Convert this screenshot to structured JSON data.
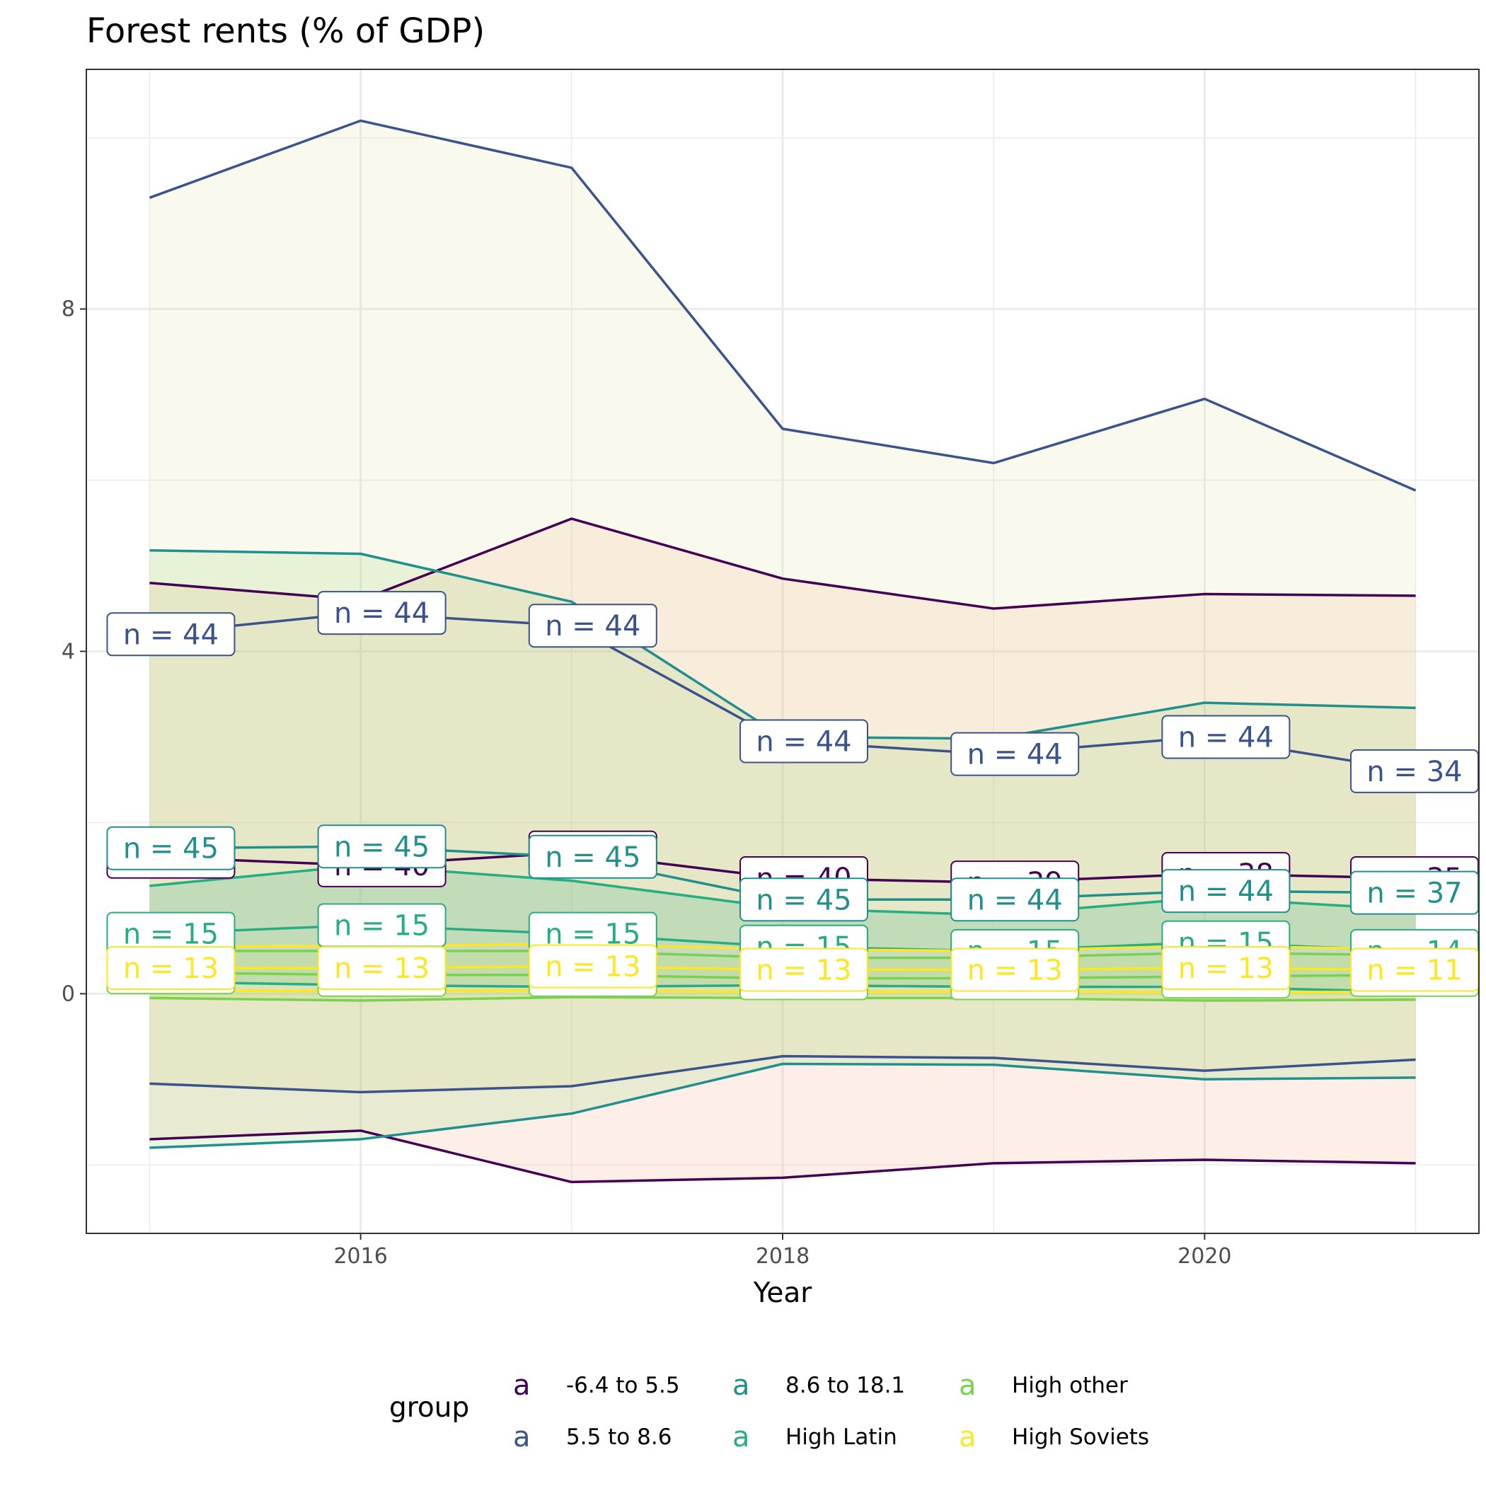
{
  "chart_data": {
    "type": "line",
    "title": "Forest rents (% of GDP)",
    "xlabel": "Year",
    "ylabel": "",
    "x": [
      2015,
      2016,
      2017,
      2018,
      2019,
      2020,
      2021
    ],
    "xlim": [
      2014.7,
      2021.3
    ],
    "ylim": [
      -2.8,
      10.8
    ],
    "x_ticks": [
      2016,
      2018,
      2020
    ],
    "x_tick_labels": [
      "2016",
      "2018",
      "2020"
    ],
    "y_ticks": [
      0,
      4,
      8
    ],
    "y_tick_labels": [
      "0",
      "4",
      "8"
    ],
    "y_minor_gridlines": [
      -2,
      2,
      6,
      10
    ],
    "grid": true,
    "legend": {
      "title": "group",
      "position": "bottom",
      "key_glyph": "a"
    },
    "series": [
      {
        "name": "-6.4 to 5.5",
        "color": "#440154",
        "band_color": "#f4a582",
        "mean": [
          1.6,
          1.5,
          1.65,
          1.35,
          1.3,
          1.4,
          1.35
        ],
        "upper": [
          4.8,
          4.6,
          5.55,
          4.85,
          4.5,
          4.67,
          4.65
        ],
        "lower": [
          -1.7,
          -1.6,
          -2.2,
          -2.15,
          -1.98,
          -1.94,
          -1.98
        ],
        "n_labels": [
          "n = 40",
          "n = 40",
          "n = 40",
          "n = 40",
          "n = 39",
          "n = 38",
          "n = 35"
        ]
      },
      {
        "name": "5.5 to 8.6",
        "color": "#3b528b",
        "band_color": "#e6dfa3",
        "mean": [
          4.2,
          4.45,
          4.3,
          2.95,
          2.8,
          3.0,
          2.6
        ],
        "upper": [
          9.3,
          10.2,
          9.65,
          6.6,
          6.2,
          6.95,
          5.88
        ],
        "lower": [
          -1.05,
          -1.15,
          -1.08,
          -0.73,
          -0.75,
          -0.9,
          -0.77
        ],
        "n_labels": [
          "n = 44",
          "n = 44",
          "n = 44",
          "n = 44",
          "n = 44",
          "n = 44",
          "n = 34"
        ]
      },
      {
        "name": "8.6 to 18.1",
        "color": "#21908d",
        "band_color": "#8fd16f",
        "mean": [
          1.7,
          1.72,
          1.6,
          1.1,
          1.1,
          1.2,
          1.18
        ],
        "upper": [
          5.18,
          5.14,
          4.58,
          3.0,
          2.98,
          3.4,
          3.34
        ],
        "lower": [
          -1.8,
          -1.7,
          -1.4,
          -0.82,
          -0.83,
          -1.0,
          -0.98
        ],
        "n_labels": [
          "n = 45",
          "n = 45",
          "n = 45",
          "n = 45",
          "n = 44",
          "n = 44",
          "n = 37"
        ]
      },
      {
        "name": "High Latin",
        "color": "#27ad81",
        "band_color": "#27ad81",
        "mean": [
          0.7,
          0.8,
          0.7,
          0.55,
          0.5,
          0.6,
          0.5
        ],
        "upper": [
          1.26,
          1.5,
          1.32,
          1.0,
          0.92,
          1.12,
          0.98
        ],
        "lower": [
          0.14,
          0.1,
          0.08,
          0.1,
          0.08,
          0.08,
          0.02
        ],
        "n_labels": [
          "n = 15",
          "n = 15",
          "n = 15",
          "n = 15",
          "n = 15",
          "n = 15",
          "n = 14"
        ]
      },
      {
        "name": "High other",
        "color": "#7ad151",
        "band_color": "#aadc32",
        "mean": [
          0.25,
          0.22,
          0.22,
          0.18,
          0.18,
          0.2,
          0.22
        ],
        "upper": [
          0.5,
          0.5,
          0.5,
          0.42,
          0.42,
          0.48,
          0.45
        ],
        "lower": [
          -0.05,
          -0.08,
          -0.04,
          -0.05,
          -0.05,
          -0.08,
          -0.07
        ],
        "n_labels": [
          "n = 13",
          "n = 13",
          "n = 13",
          "n = 13",
          "n = 13",
          "n = 13",
          "n = 11"
        ]
      },
      {
        "name": "High Soviets",
        "color": "#fde725",
        "band_color": "#dddddd",
        "mean": [
          0.3,
          0.3,
          0.32,
          0.28,
          0.28,
          0.3,
          0.28
        ],
        "upper": [
          0.55,
          0.56,
          0.58,
          0.52,
          0.5,
          0.56,
          0.52
        ],
        "lower": [
          0.04,
          0.03,
          0.04,
          0.02,
          0.03,
          0.02,
          0.02
        ],
        "n_labels": [
          "n = 13",
          "n = 13",
          "n = 13",
          "n = 13",
          "n = 13",
          "n = 13",
          "n = 11"
        ]
      }
    ]
  }
}
